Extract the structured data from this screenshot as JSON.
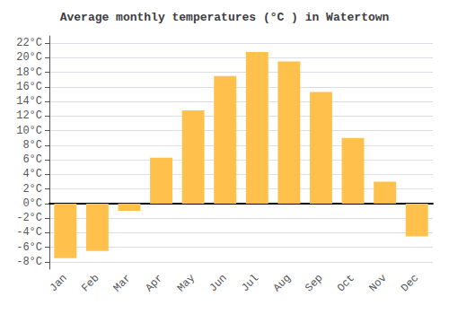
{
  "chart_data": {
    "type": "bar",
    "title": "Average monthly temperatures (°C ) in Watertown",
    "categories": [
      "Jan",
      "Feb",
      "Mar",
      "Apr",
      "May",
      "Jun",
      "Jul",
      "Aug",
      "Sep",
      "Oct",
      "Nov",
      "Dec"
    ],
    "values": [
      -7.5,
      -6.5,
      -1.0,
      6.3,
      12.8,
      17.5,
      20.8,
      19.5,
      15.3,
      9.0,
      3.0,
      -4.5
    ],
    "color": "#FFC04C",
    "ylim": [
      -9,
      23
    ],
    "yticks": [
      {
        "value": -8,
        "label": "-8°C"
      },
      {
        "value": -6,
        "label": "-6°C"
      },
      {
        "value": -4,
        "label": "-4°C"
      },
      {
        "value": -2,
        "label": "-2°C"
      },
      {
        "value": 0,
        "label": "0°C"
      },
      {
        "value": 2,
        "label": "2°C"
      },
      {
        "value": 4,
        "label": "4°C"
      },
      {
        "value": 6,
        "label": "6°C"
      },
      {
        "value": 8,
        "label": "8°C"
      },
      {
        "value": 10,
        "label": "10°C"
      },
      {
        "value": 12,
        "label": "12°C"
      },
      {
        "value": 14,
        "label": "14°C"
      },
      {
        "value": 16,
        "label": "16°C"
      },
      {
        "value": 18,
        "label": "18°C"
      },
      {
        "value": 20,
        "label": "20°C"
      },
      {
        "value": 22,
        "label": "22°C"
      }
    ],
    "grid": true
  }
}
